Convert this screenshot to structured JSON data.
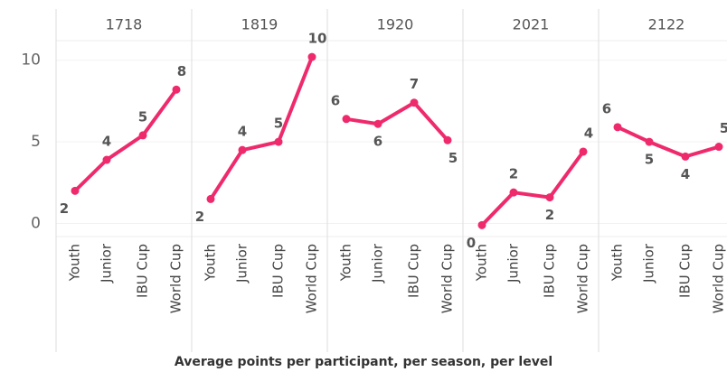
{
  "chart_data": {
    "type": "line",
    "x_label": "Average points  per participant, per season, per level",
    "categories": [
      "Youth",
      "Junior",
      "IBU Cup",
      "World Cup"
    ],
    "color": "#ef2a6c",
    "ylim": [
      -0.8,
      11.2
    ],
    "yticks": [
      0,
      5,
      10
    ],
    "grid": true,
    "panels": [
      {
        "title": "1718",
        "values": [
          2.0,
          3.9,
          5.4,
          8.2
        ],
        "value_labels": [
          "2",
          "4",
          "5",
          "8"
        ]
      },
      {
        "title": "1819",
        "values": [
          1.5,
          4.5,
          5.0,
          10.2
        ],
        "value_labels": [
          "2",
          "4",
          "5",
          "10"
        ]
      },
      {
        "title": "1920",
        "values": [
          6.4,
          6.1,
          7.4,
          5.1
        ],
        "value_labels": [
          "6",
          "6",
          "7",
          "5"
        ]
      },
      {
        "title": "2021",
        "values": [
          -0.1,
          1.9,
          1.6,
          4.4
        ],
        "value_labels": [
          "0",
          "2",
          "2",
          "4"
        ]
      },
      {
        "title": "2122",
        "values": [
          5.9,
          5.0,
          4.1,
          4.7
        ],
        "value_labels": [
          "6",
          "5",
          "4",
          "5"
        ]
      }
    ]
  }
}
